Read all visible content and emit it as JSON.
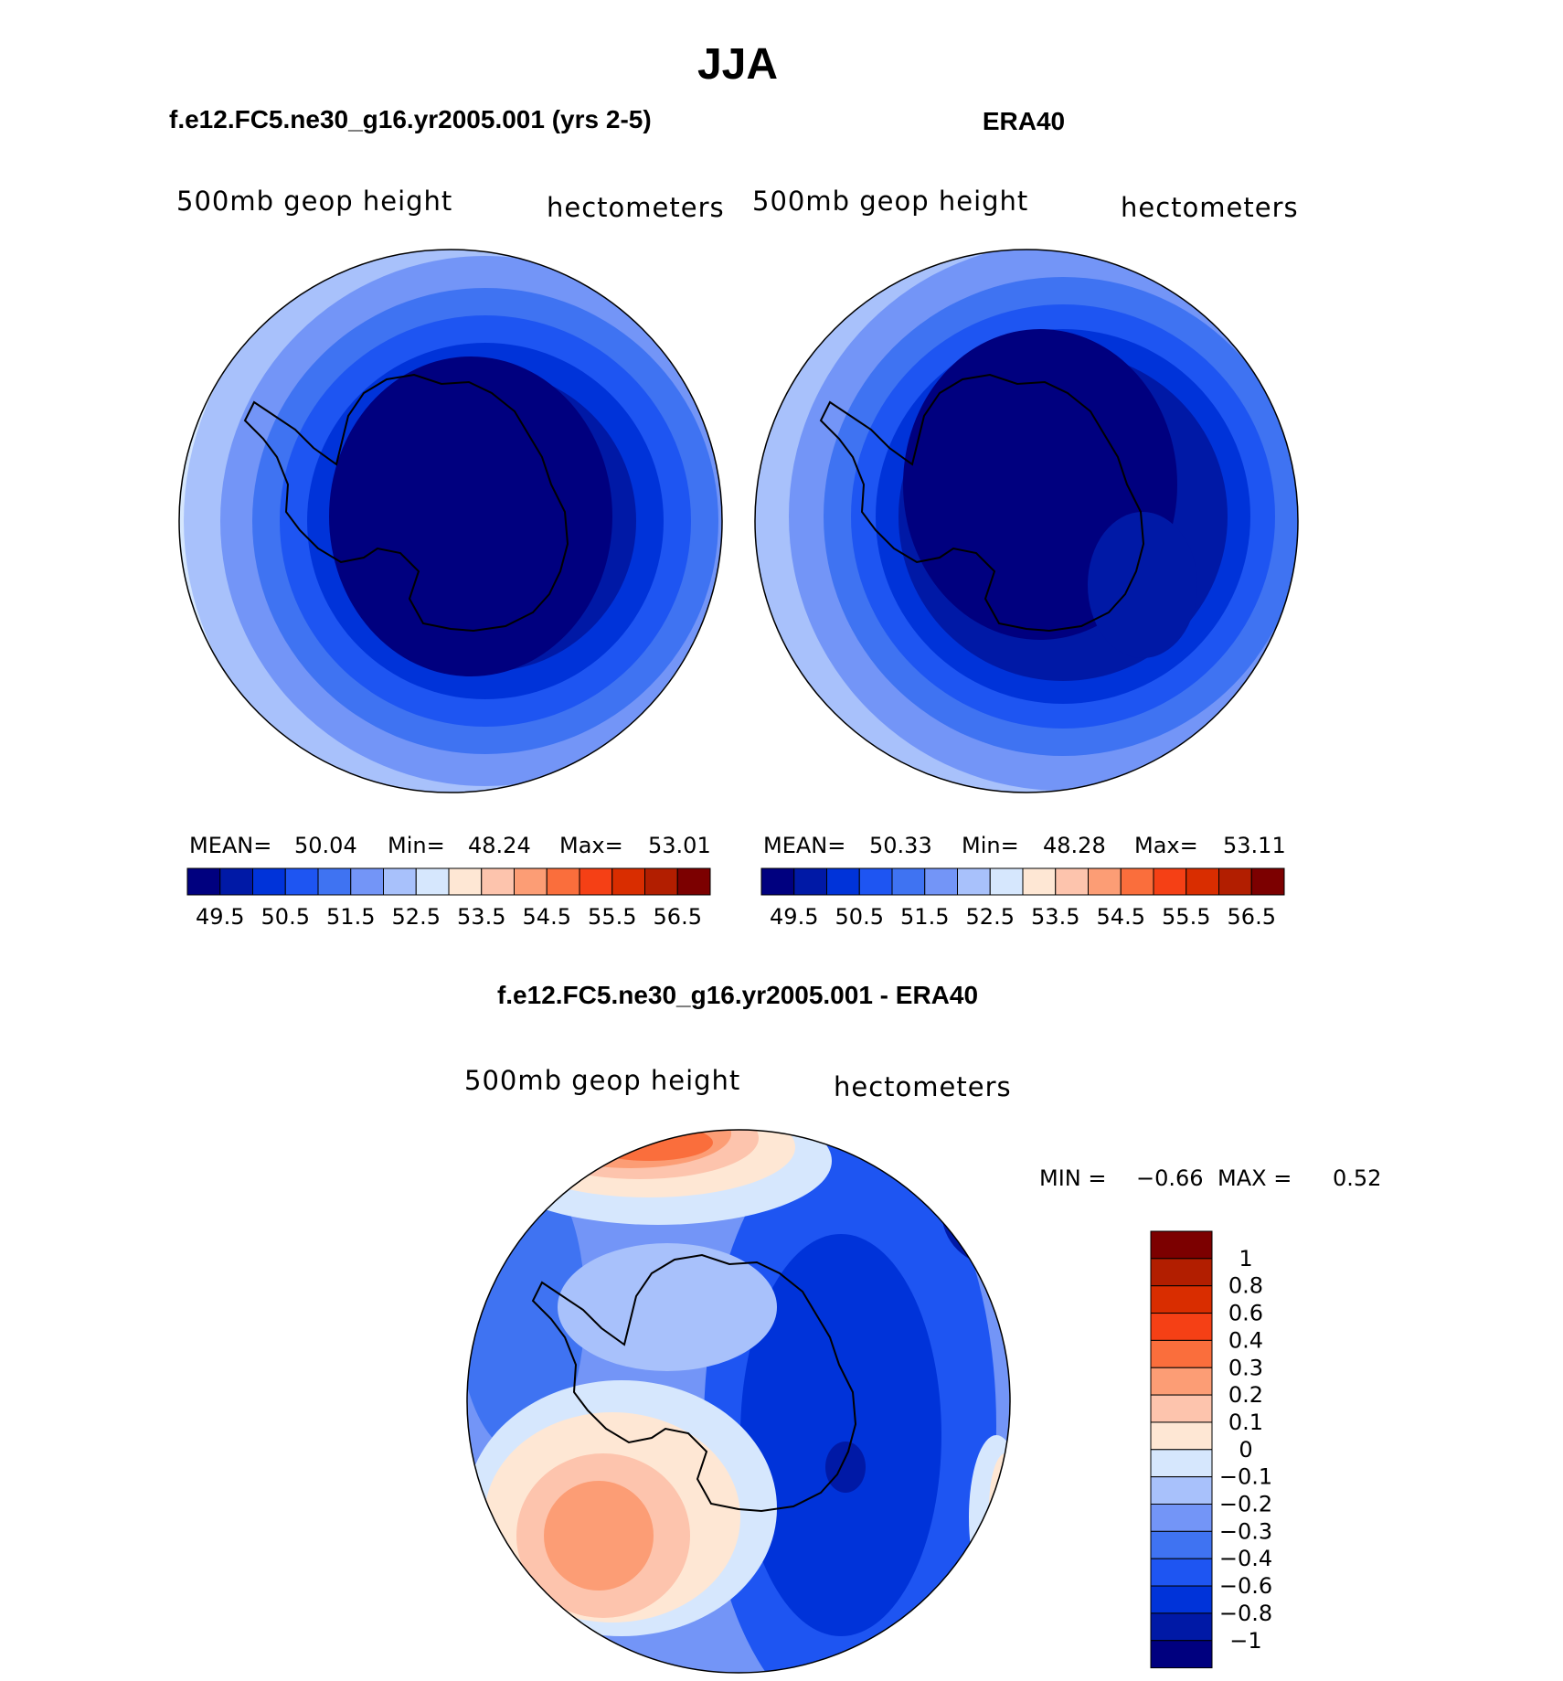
{
  "title": "JJA",
  "colors": {
    "levels14": [
      "#00007f",
      "#0019a6",
      "#0033d9",
      "#1e55f2",
      "#3f73f2",
      "#7395f7",
      "#a8c1fb",
      "#d6e7fd",
      "#fee7d4",
      "#fdc4ad",
      "#fc9d75",
      "#fa6e3c",
      "#f54015",
      "#d92d00",
      "#b21e00",
      "#7c0000"
    ],
    "diff": [
      "#00007f",
      "#0019a6",
      "#0033d9",
      "#1e55f2",
      "#3f73f2",
      "#7395f7",
      "#a8c1fb",
      "#d6e7fd",
      "#fee7d4",
      "#fdc4ad",
      "#fc9d75",
      "#fa6e3c",
      "#f54015",
      "#d92d00",
      "#b21e00",
      "#7c0000"
    ]
  },
  "chart_data": [
    {
      "type": "heatmap",
      "title": "f.e12.FC5.ne30_g16.yr2005.001 (yrs 2-5)",
      "left_label": "500mb geop height",
      "right_label": "hectometers",
      "stats": {
        "mean_label": "MEAN=",
        "mean": "50.04",
        "min_label": "Min=",
        "min": "48.24",
        "max_label": "Max=",
        "max": "53.01"
      },
      "colorbar_labels": [
        "49.5",
        "50.5",
        "51.5",
        "52.5",
        "53.5",
        "54.5",
        "55.5",
        "56.5"
      ],
      "levels": [
        49.25,
        49.5,
        49.75,
        50,
        50.5,
        51,
        51.5,
        52,
        52.5,
        53,
        53.5,
        54,
        54.5,
        55,
        55.5,
        56,
        56.5
      ],
      "gradient_center": [
        0.55,
        0.52
      ]
    },
    {
      "type": "heatmap",
      "title": "ERA40",
      "left_label": "500mb geop height",
      "right_label": "hectometers",
      "stats": {
        "mean_label": "MEAN=",
        "mean": "50.33",
        "min_label": "Min=",
        "min": "48.28",
        "max_label": "Max=",
        "max": "53.11"
      },
      "colorbar_labels": [
        "49.5",
        "50.5",
        "51.5",
        "52.5",
        "53.5",
        "54.5",
        "55.5",
        "56.5"
      ],
      "gradient_center": [
        0.58,
        0.48
      ]
    },
    {
      "type": "heatmap",
      "title": "f.e12.FC5.ne30_g16.yr2005.001 - ERA40",
      "left_label": "500mb geop height",
      "right_label": "hectometers",
      "stats": {
        "min_label": "MIN =",
        "min": "−0.66",
        "max_label": "MAX =",
        "max": "0.52"
      },
      "colorbar_labels": [
        "1",
        "0.8",
        "0.6",
        "0.4",
        "0.3",
        "0.2",
        "0.1",
        "0",
        "−0.1",
        "−0.2",
        "−0.3",
        "−0.4",
        "−0.6",
        "−0.8",
        "−1"
      ]
    }
  ]
}
